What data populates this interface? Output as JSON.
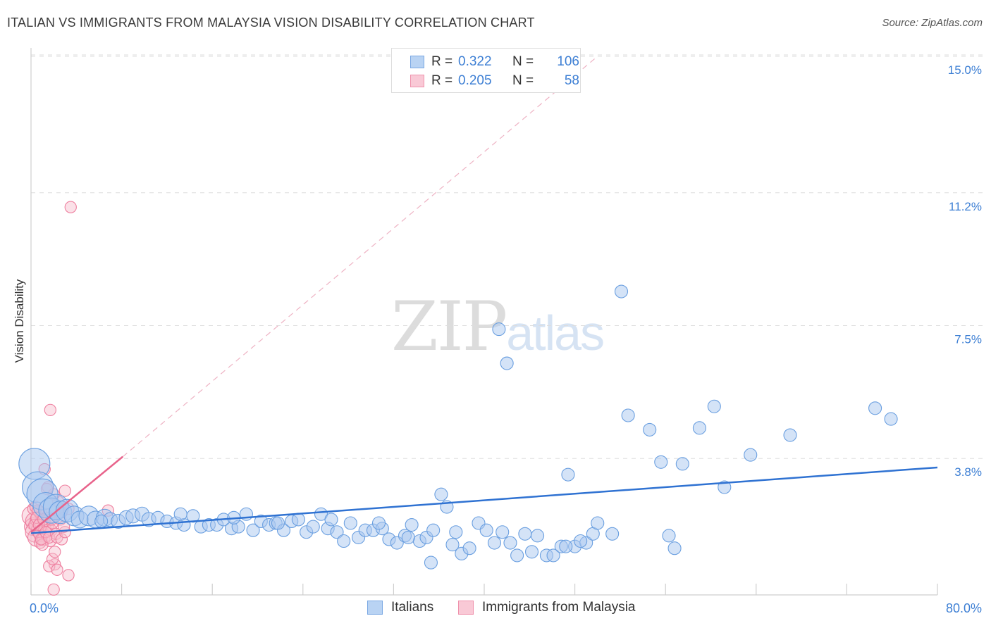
{
  "title": "ITALIAN VS IMMIGRANTS FROM MALAYSIA VISION DISABILITY CORRELATION CHART",
  "source": "Source: ZipAtlas.com",
  "watermark": {
    "zip": "ZIP",
    "atlas": "atlas"
  },
  "legend": {
    "rows": [
      {
        "r_label": "R =",
        "r_value": "0.322",
        "n_label": "N =",
        "n_value": "106"
      },
      {
        "r_label": "R =",
        "r_value": "0.205",
        "n_label": "N =",
        "n_value": "58"
      }
    ]
  },
  "bottom_legend": [
    "Italians",
    "Immigrants from Malaysia"
  ],
  "colors": {
    "blue_fill": "#a9c8f0",
    "blue_stroke": "#6a9fe0",
    "blue_line": "#2f72d2",
    "pink_fill": "#f7bccc",
    "pink_stroke": "#ee7f9f",
    "pink_line": "#e8638b",
    "axis_text": "#3d7fd4",
    "grid": "#dddddd"
  },
  "chart_data": {
    "type": "scatter",
    "title": "ITALIAN VS IMMIGRANTS FROM MALAYSIA VISION DISABILITY CORRELATION CHART",
    "xlabel": "",
    "ylabel": "Vision Disability",
    "xlim": [
      0,
      80
    ],
    "ylim": [
      0,
      15.5
    ],
    "x_tick_labels": [
      "0.0%",
      "80.0%"
    ],
    "y_ticks": [
      {
        "value": 3.8,
        "label": "3.8%"
      },
      {
        "value": 7.5,
        "label": "7.5%"
      },
      {
        "value": 11.2,
        "label": "11.2%"
      },
      {
        "value": 15.0,
        "label": "15.0%"
      }
    ],
    "series": [
      {
        "name": "Italians",
        "r": 0.322,
        "n": 106,
        "trend": {
          "x0": 0.0,
          "y0": 1.72,
          "x1": 80.0,
          "y1": 3.55,
          "style": "solid"
        },
        "points": [
          [
            0.3,
            3.65,
            22
          ],
          [
            0.6,
            3.0,
            22
          ],
          [
            1.0,
            2.8,
            22
          ],
          [
            1.3,
            2.5,
            18
          ],
          [
            1.8,
            2.35,
            18
          ],
          [
            2.2,
            2.45,
            18
          ],
          [
            2.6,
            2.3,
            16
          ],
          [
            3.2,
            2.35,
            16
          ],
          [
            3.8,
            2.2,
            14
          ],
          [
            4.3,
            2.1,
            12
          ],
          [
            5.1,
            2.2,
            14
          ],
          [
            5.7,
            2.1,
            12
          ],
          [
            6.5,
            2.15,
            12
          ],
          [
            7.0,
            2.1,
            10
          ],
          [
            7.7,
            2.05,
            10
          ],
          [
            8.4,
            2.15,
            10
          ],
          [
            9.0,
            2.2,
            10
          ],
          [
            9.8,
            2.25,
            10
          ],
          [
            10.4,
            2.1,
            10
          ],
          [
            11.2,
            2.15,
            9
          ],
          [
            12.0,
            2.05,
            9
          ],
          [
            12.8,
            2.0,
            9
          ],
          [
            13.5,
            1.95,
            9
          ],
          [
            14.3,
            2.2,
            9
          ],
          [
            15.0,
            1.9,
            9
          ],
          [
            15.7,
            1.95,
            9
          ],
          [
            16.4,
            1.95,
            9
          ],
          [
            17.0,
            2.1,
            9
          ],
          [
            17.7,
            1.85,
            9
          ],
          [
            18.3,
            1.9,
            9
          ],
          [
            19.0,
            2.25,
            9
          ],
          [
            19.6,
            1.8,
            9
          ],
          [
            20.3,
            2.05,
            9
          ],
          [
            21.0,
            1.95,
            9
          ],
          [
            21.6,
            2.0,
            9
          ],
          [
            22.3,
            1.8,
            9
          ],
          [
            23.0,
            2.05,
            9
          ],
          [
            23.6,
            2.1,
            9
          ],
          [
            24.3,
            1.75,
            9
          ],
          [
            24.9,
            1.9,
            9
          ],
          [
            25.6,
            2.25,
            9
          ],
          [
            26.2,
            1.85,
            9
          ],
          [
            27.0,
            1.75,
            9
          ],
          [
            27.6,
            1.5,
            9
          ],
          [
            28.2,
            2.0,
            9
          ],
          [
            28.9,
            1.6,
            9
          ],
          [
            29.5,
            1.8,
            9
          ],
          [
            30.2,
            1.8,
            9
          ],
          [
            31.0,
            1.85,
            9
          ],
          [
            31.6,
            1.55,
            9
          ],
          [
            32.3,
            1.45,
            9
          ],
          [
            33.0,
            1.65,
            9
          ],
          [
            33.6,
            1.95,
            9
          ],
          [
            34.3,
            1.5,
            9
          ],
          [
            34.9,
            1.6,
            9
          ],
          [
            35.5,
            1.8,
            9
          ],
          [
            36.2,
            2.8,
            9
          ],
          [
            36.7,
            2.45,
            9
          ],
          [
            37.2,
            1.4,
            9
          ],
          [
            38.0,
            1.15,
            9
          ],
          [
            38.7,
            1.3,
            9
          ],
          [
            39.5,
            2.0,
            9
          ],
          [
            40.2,
            1.8,
            9
          ],
          [
            40.9,
            1.45,
            9
          ],
          [
            41.6,
            1.75,
            9
          ],
          [
            42.3,
            1.45,
            9
          ],
          [
            42.9,
            1.1,
            9
          ],
          [
            43.6,
            1.7,
            9
          ],
          [
            35.3,
            0.9,
            9
          ],
          [
            44.2,
            1.2,
            9
          ],
          [
            45.5,
            1.1,
            9
          ],
          [
            46.1,
            1.1,
            9
          ],
          [
            46.8,
            1.35,
            9
          ],
          [
            47.4,
            3.35,
            9
          ],
          [
            48.0,
            1.35,
            9
          ],
          [
            49.0,
            1.45,
            9
          ],
          [
            49.6,
            1.7,
            9
          ],
          [
            50.0,
            2.0,
            9
          ],
          [
            51.3,
            1.7,
            9
          ],
          [
            52.1,
            8.45,
            9
          ],
          [
            52.7,
            5.0,
            9
          ],
          [
            54.6,
            4.6,
            9
          ],
          [
            55.6,
            3.7,
            9
          ],
          [
            56.3,
            1.65,
            9
          ],
          [
            56.8,
            1.3,
            9
          ],
          [
            57.5,
            3.65,
            9
          ],
          [
            59.0,
            4.65,
            9
          ],
          [
            60.3,
            5.25,
            9
          ],
          [
            61.2,
            3.0,
            9
          ],
          [
            63.5,
            3.9,
            9
          ],
          [
            67.0,
            4.45,
            9
          ],
          [
            74.5,
            5.2,
            9
          ],
          [
            75.9,
            4.9,
            9
          ],
          [
            41.3,
            7.4,
            9
          ],
          [
            42.0,
            6.45,
            9
          ],
          [
            13.2,
            2.25,
            9
          ],
          [
            17.9,
            2.15,
            9
          ],
          [
            21.8,
            2.0,
            9
          ],
          [
            26.5,
            2.1,
            9
          ],
          [
            30.7,
            2.0,
            9
          ],
          [
            33.3,
            1.6,
            9
          ],
          [
            37.5,
            1.75,
            9
          ],
          [
            44.7,
            1.65,
            9
          ],
          [
            47.2,
            1.35,
            9
          ],
          [
            48.5,
            1.5,
            9
          ],
          [
            6.2,
            2.05,
            9
          ]
        ]
      },
      {
        "name": "Immigrants from Malaysia",
        "r": 0.205,
        "n": 58,
        "trend": {
          "x0": 0.0,
          "y0": 1.75,
          "x1": 8.1,
          "y1": 3.85,
          "style": "solid",
          "extend_to": [
            50.0,
            15.0
          ]
        },
        "points": [
          [
            0.1,
            2.2,
            16
          ],
          [
            0.2,
            1.9,
            14
          ],
          [
            0.3,
            2.05,
            14
          ],
          [
            0.4,
            1.75,
            16
          ],
          [
            0.5,
            1.6,
            14
          ],
          [
            0.6,
            2.1,
            12
          ],
          [
            0.7,
            1.8,
            12
          ],
          [
            0.8,
            2.3,
            10
          ],
          [
            0.9,
            1.7,
            12
          ],
          [
            1.0,
            2.0,
            12
          ],
          [
            1.1,
            1.55,
            10
          ],
          [
            1.2,
            1.85,
            10
          ],
          [
            1.3,
            2.25,
            9
          ],
          [
            1.4,
            1.65,
            9
          ],
          [
            1.5,
            1.9,
            9
          ],
          [
            1.6,
            2.15,
            9
          ],
          [
            1.7,
            1.5,
            9
          ],
          [
            1.8,
            1.8,
            9
          ],
          [
            0.2,
            2.4,
            9
          ],
          [
            0.4,
            2.45,
            9
          ],
          [
            0.6,
            2.35,
            9
          ],
          [
            0.8,
            1.45,
            9
          ],
          [
            1.0,
            1.4,
            9
          ],
          [
            1.2,
            2.05,
            9
          ],
          [
            0.3,
            1.95,
            9
          ],
          [
            0.5,
            2.15,
            9
          ],
          [
            0.7,
            1.95,
            9
          ],
          [
            0.9,
            1.55,
            9
          ],
          [
            1.1,
            2.1,
            9
          ],
          [
            1.3,
            1.75,
            9
          ],
          [
            1.6,
            1.6,
            9
          ],
          [
            1.9,
            2.0,
            9
          ],
          [
            2.2,
            1.7,
            9
          ],
          [
            2.4,
            2.6,
            9
          ],
          [
            2.6,
            2.1,
            9
          ],
          [
            2.8,
            2.45,
            9
          ],
          [
            3.0,
            2.9,
            9
          ],
          [
            2.7,
            2.3,
            9
          ],
          [
            1.2,
            3.5,
            9
          ],
          [
            1.5,
            3.0,
            9
          ],
          [
            1.7,
            5.15,
            9
          ],
          [
            3.5,
            10.8,
            9
          ],
          [
            2.1,
            0.85,
            9
          ],
          [
            1.6,
            0.8,
            9
          ],
          [
            1.9,
            1.0,
            9
          ],
          [
            2.1,
            1.2,
            9
          ],
          [
            2.3,
            0.7,
            9
          ],
          [
            2.0,
            0.15,
            9
          ],
          [
            2.3,
            1.6,
            9
          ],
          [
            2.7,
            1.55,
            9
          ],
          [
            3.3,
            2.4,
            9
          ],
          [
            3.0,
            1.75,
            9
          ],
          [
            6.8,
            2.35,
            9
          ],
          [
            2.0,
            2.8,
            9
          ],
          [
            1.4,
            2.95,
            9
          ],
          [
            2.9,
            1.9,
            9
          ],
          [
            1.8,
            2.1,
            9
          ],
          [
            3.3,
            0.55,
            9
          ]
        ]
      }
    ]
  }
}
